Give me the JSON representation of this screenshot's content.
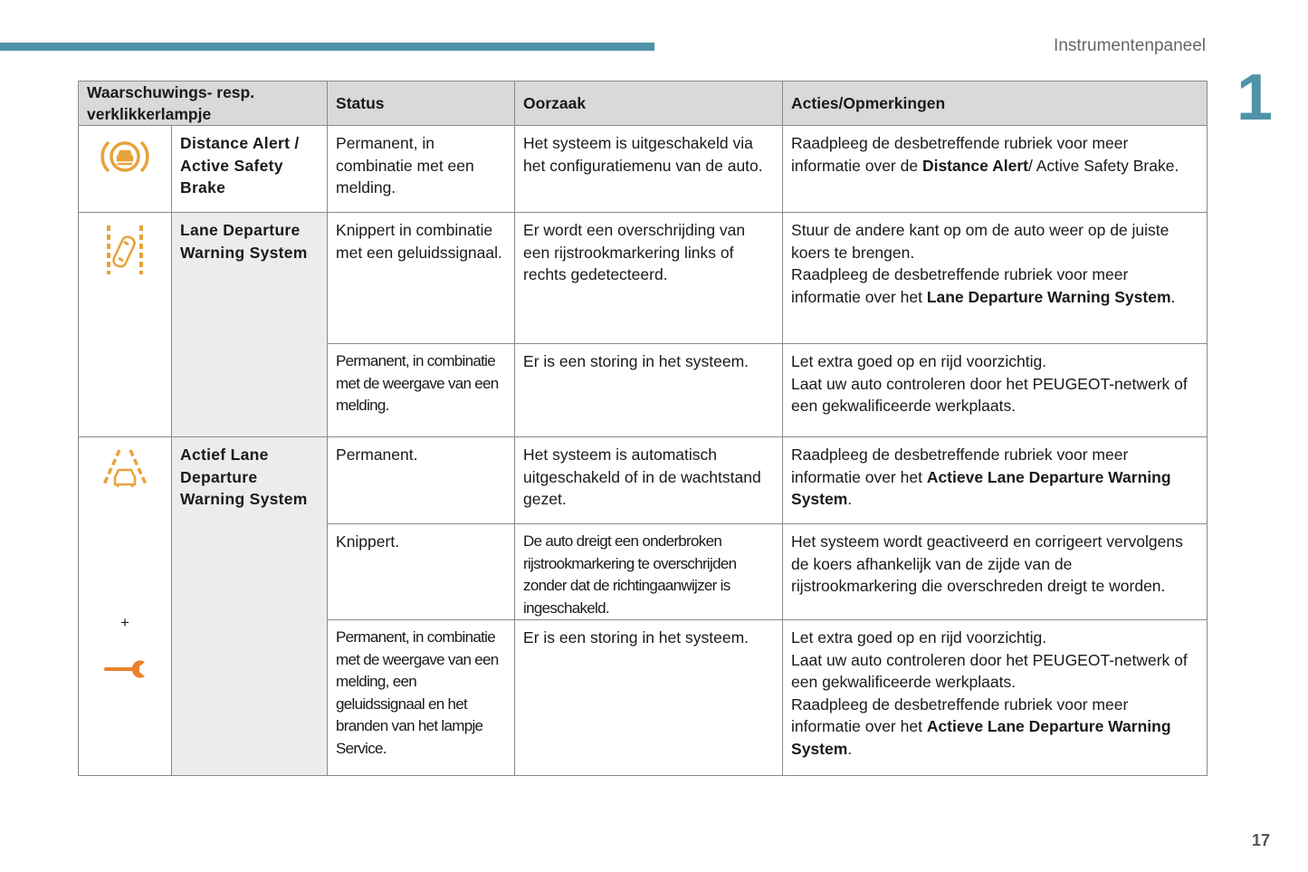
{
  "header": {
    "section_title": "Instrumentenpaneel",
    "chapter": "1"
  },
  "footer": {
    "page_number": "17"
  },
  "colors": {
    "accent": "#4f93a8",
    "warning_icon": "#e8a23a",
    "service_icon": "#e8822a"
  },
  "table": {
    "headers": [
      "Waarschuwings- resp. verklikkerlampje",
      "Status",
      "Oorzaak",
      "Acties/Opmerkingen"
    ],
    "groups": [
      {
        "icon": "distance-alert-icon",
        "name": "Distance Alert / Active Safety Brake",
        "rows": [
          {
            "status": [
              {
                "t": "Permanent, in combinatie met een melding."
              }
            ],
            "cause": [
              {
                "t": "Het systeem is uitgeschakeld via het configuratiemenu van de auto."
              }
            ],
            "action": [
              {
                "t": "Raadpleeg de desbetreffende rubriek voor meer informatie over de "
              },
              {
                "t": "Distance Alert",
                "b": true
              },
              {
                "t": "/ Active Safety Brake."
              }
            ]
          }
        ]
      },
      {
        "icon": "lane-departure-warning-icon",
        "name": "Lane Departure Warning System",
        "rows": [
          {
            "status": [
              {
                "t": "Knippert in combinatie met een geluidssignaal."
              }
            ],
            "cause": [
              {
                "t": "Er wordt een overschrijding van een rijstrookmarkering links of rechts gedetecteerd."
              }
            ],
            "action": [
              {
                "t": "Stuur de andere kant op om de auto weer op de juiste koers te brengen."
              },
              {
                "br": true
              },
              {
                "t": "Raadpleeg de desbetreffende rubriek voor meer informatie over het "
              },
              {
                "t": "Lane Departure Warning System",
                "b": true
              },
              {
                "t": "."
              }
            ]
          },
          {
            "status": [
              {
                "t": "Permanent, in combinatie met de weergave van een melding."
              }
            ],
            "status_narrow": true,
            "cause": [
              {
                "t": "Er is een storing in het systeem."
              }
            ],
            "action": [
              {
                "t": "Let extra goed op en rijd voorzichtig."
              },
              {
                "br": true
              },
              {
                "t": "Laat uw auto controleren door het PEUGEOT-netwerk of een gekwalificeerde werkplaats."
              }
            ]
          }
        ]
      },
      {
        "icon": "active-lane-departure-icon",
        "icon_extra": {
          "plus": "+",
          "second_icon": "service-wrench-icon"
        },
        "name": "Actief Lane Departure Warning System",
        "rows": [
          {
            "status": [
              {
                "t": "Permanent."
              }
            ],
            "cause": [
              {
                "t": "Het systeem is automatisch uitgeschakeld of in de wachtstand gezet."
              }
            ],
            "action": [
              {
                "t": "Raadpleeg de desbetreffende rubriek voor meer informatie over het "
              },
              {
                "t": "Actieve Lane Departure Warning System",
                "b": true
              },
              {
                "t": "."
              }
            ]
          },
          {
            "status": [
              {
                "t": "Knippert."
              }
            ],
            "cause": [
              {
                "t": "De auto dreigt een onderbroken rijstrookmarkering te overschrijden zonder dat de richtingaanwijzer is ingeschakeld."
              }
            ],
            "cause_narrow": true,
            "action": [
              {
                "t": "Het systeem wordt geactiveerd en corrigeert vervolgens de koers afhankelijk van de zijde van de rijstrookmarkering die overschreden dreigt te worden."
              }
            ]
          },
          {
            "status": [
              {
                "t": "Permanent, in combinatie met de weergave van een melding, een geluidssignaal en het branden van het lampje Service."
              }
            ],
            "status_narrow": true,
            "cause": [
              {
                "t": "Er is een storing in het systeem."
              }
            ],
            "action": [
              {
                "t": "Let extra goed op en rijd voorzichtig."
              },
              {
                "br": true
              },
              {
                "t": "Laat uw auto controleren door het PEUGEOT-netwerk of een gekwalificeerde werkplaats."
              },
              {
                "br": true
              },
              {
                "t": "Raadpleeg de desbetreffende rubriek voor meer informatie over het "
              },
              {
                "t": "Actieve Lane Departure Warning System",
                "b": true
              },
              {
                "t": "."
              }
            ]
          }
        ]
      }
    ]
  }
}
